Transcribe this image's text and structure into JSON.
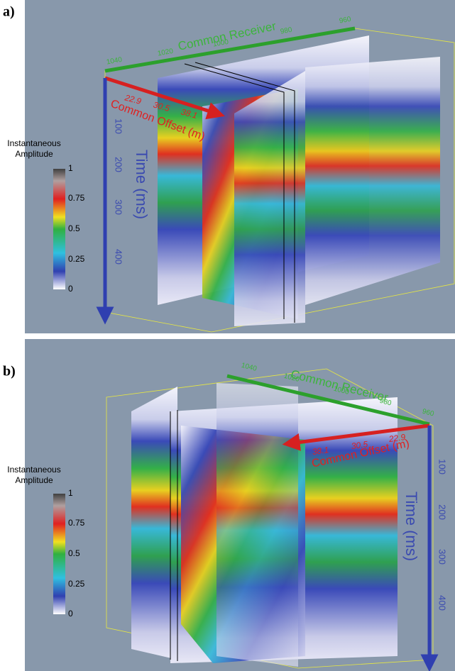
{
  "panels": [
    {
      "label": "a)",
      "receiver_axis": {
        "title": "Common Receiver",
        "ticks": [
          "1040",
          "1020",
          "1000",
          "980",
          "960"
        ]
      },
      "offset_axis": {
        "title": "Common Offset (m)",
        "ticks": [
          "22.9",
          "30.5",
          "38.1"
        ]
      },
      "time_axis": {
        "title": "Time (ms)",
        "ticks": [
          "100",
          "200",
          "300",
          "400"
        ]
      },
      "colorbar": {
        "title": [
          "Instantaneous",
          "Amplitude"
        ],
        "ticks": [
          "1",
          "0.75",
          "0.5",
          "0.25",
          "0"
        ]
      }
    },
    {
      "label": "b)",
      "receiver_axis": {
        "title": "Common Receiver",
        "ticks": [
          "1040",
          "1020",
          "1000",
          "980",
          "960"
        ]
      },
      "offset_axis": {
        "title": "Common Offset (m)",
        "ticks": [
          "38.1",
          "30.5",
          "22.9"
        ]
      },
      "time_axis": {
        "title": "Time (ms)",
        "ticks": [
          "100",
          "200",
          "300",
          "400"
        ]
      },
      "colorbar": {
        "title": [
          "Instantaneous",
          "Amplitude"
        ],
        "ticks": [
          "1",
          "0.75",
          "0.5",
          "0.25",
          "0"
        ]
      }
    }
  ]
}
